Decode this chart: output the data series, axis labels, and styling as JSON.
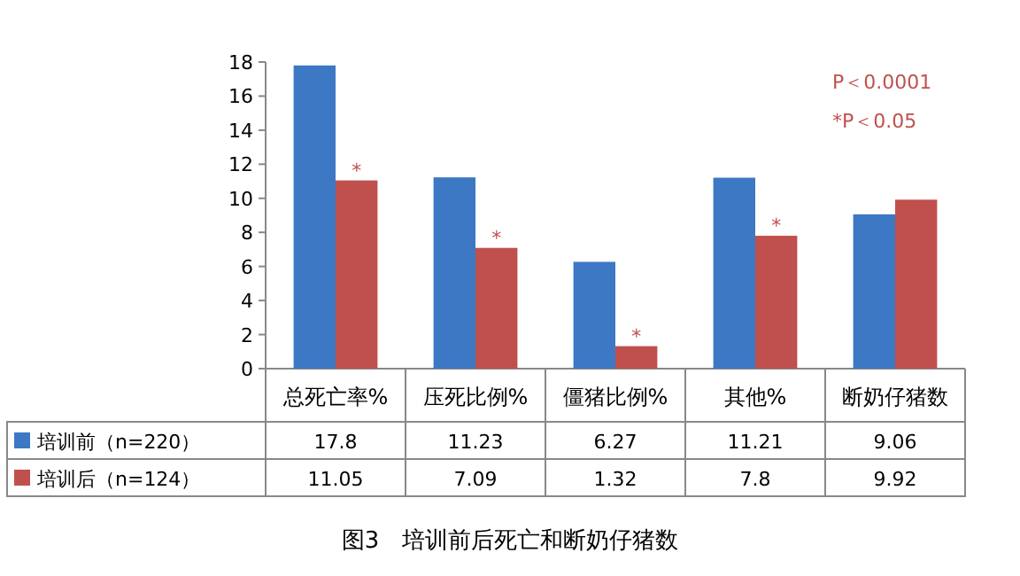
{
  "chart_data": {
    "type": "bar",
    "title": "图3　培训前后死亡和断奶仔猪数",
    "categories": [
      "总死亡率%",
      "压死比例%",
      "僵猪比例%",
      "其他%",
      "断奶仔猪数"
    ],
    "series": [
      {
        "name": "培训前（n=220）",
        "color": "#3c78c4",
        "values": [
          17.8,
          11.23,
          6.27,
          11.21,
          9.06
        ]
      },
      {
        "name": "培训后（n=124）",
        "color": "#c0504d",
        "values": [
          11.05,
          7.09,
          1.32,
          7.8,
          9.92
        ]
      }
    ],
    "ylim": [
      0,
      18
    ],
    "yticks": [
      0,
      2,
      4,
      6,
      8,
      10,
      12,
      14,
      16,
      18
    ],
    "data_labels": true,
    "legend": "bottom",
    "annotations": [
      "P＜0.0001",
      "*P＜0.05",
      {
        "text": "*",
        "x": "总死亡率%",
        "y": 11.05
      },
      {
        "text": "*",
        "x": "压死比例%",
        "y": 7.09
      },
      {
        "text": "*",
        "x": "僵猪比例%",
        "y": 1.32
      },
      {
        "text": "*",
        "x": "其他%",
        "y": 7.8
      }
    ]
  }
}
